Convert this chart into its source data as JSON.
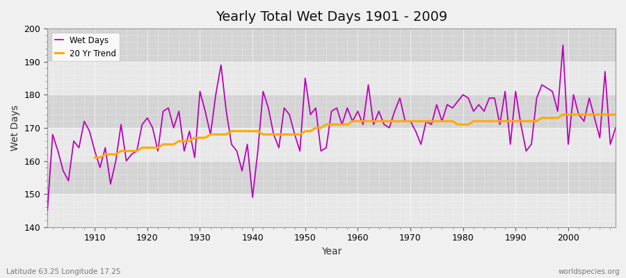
{
  "title": "Yearly Total Wet Days 1901 - 2009",
  "xlabel": "Year",
  "ylabel": "Wet Days",
  "footnote_left": "Latitude 63.25 Longitude 17.25",
  "footnote_right": "worldspecies.org",
  "ylim": [
    140,
    200
  ],
  "yticks": [
    140,
    150,
    160,
    170,
    180,
    190,
    200
  ],
  "wet_days_color": "#bb00bb",
  "trend_color": "#ffaa00",
  "background_color": "#dcdcdc",
  "band_light": "#e8e8e8",
  "band_dark": "#d4d4d4",
  "years": [
    1901,
    1902,
    1903,
    1904,
    1905,
    1906,
    1907,
    1908,
    1909,
    1910,
    1911,
    1912,
    1913,
    1914,
    1915,
    1916,
    1917,
    1918,
    1919,
    1920,
    1921,
    1922,
    1923,
    1924,
    1925,
    1926,
    1927,
    1928,
    1929,
    1930,
    1931,
    1932,
    1933,
    1934,
    1935,
    1936,
    1937,
    1938,
    1939,
    1940,
    1941,
    1942,
    1943,
    1944,
    1945,
    1946,
    1947,
    1948,
    1949,
    1950,
    1951,
    1952,
    1953,
    1954,
    1955,
    1956,
    1957,
    1958,
    1959,
    1960,
    1961,
    1962,
    1963,
    1964,
    1965,
    1966,
    1967,
    1968,
    1969,
    1970,
    1971,
    1972,
    1973,
    1974,
    1975,
    1976,
    1977,
    1978,
    1979,
    1980,
    1981,
    1982,
    1983,
    1984,
    1985,
    1986,
    1987,
    1988,
    1989,
    1990,
    1991,
    1992,
    1993,
    1994,
    1995,
    1996,
    1997,
    1998,
    1999,
    2000,
    2001,
    2002,
    2003,
    2004,
    2005,
    2006,
    2007,
    2008,
    2009
  ],
  "wet_days": [
    145,
    168,
    163,
    157,
    154,
    166,
    164,
    172,
    169,
    163,
    158,
    164,
    153,
    160,
    171,
    160,
    162,
    163,
    171,
    173,
    170,
    163,
    175,
    176,
    170,
    175,
    163,
    169,
    161,
    181,
    175,
    168,
    180,
    189,
    175,
    165,
    163,
    157,
    165,
    149,
    163,
    181,
    176,
    168,
    164,
    176,
    174,
    168,
    163,
    185,
    174,
    176,
    163,
    164,
    175,
    176,
    171,
    176,
    172,
    175,
    171,
    183,
    171,
    175,
    171,
    170,
    175,
    179,
    172,
    172,
    169,
    165,
    172,
    171,
    177,
    172,
    177,
    176,
    178,
    180,
    179,
    175,
    177,
    175,
    179,
    179,
    171,
    181,
    165,
    181,
    171,
    163,
    165,
    179,
    183,
    182,
    181,
    175,
    195,
    165,
    180,
    174,
    172,
    179,
    173,
    167,
    187,
    165,
    170
  ],
  "trend_values": [
    null,
    null,
    null,
    null,
    null,
    null,
    null,
    null,
    null,
    161,
    161,
    162,
    162,
    162,
    163,
    163,
    163,
    163,
    164,
    164,
    164,
    164,
    165,
    165,
    165,
    166,
    166,
    166,
    167,
    167,
    167,
    168,
    168,
    168,
    168,
    169,
    169,
    169,
    169,
    169,
    169,
    168,
    168,
    168,
    168,
    168,
    168,
    168,
    168,
    169,
    169,
    170,
    170,
    171,
    171,
    171,
    171,
    171,
    172,
    172,
    172,
    172,
    172,
    172,
    172,
    172,
    172,
    172,
    172,
    172,
    172,
    172,
    172,
    172,
    172,
    172,
    172,
    172,
    171,
    171,
    171,
    172,
    172,
    172,
    172,
    172,
    172,
    172,
    172,
    172,
    172,
    172,
    172,
    172,
    173,
    173,
    173,
    173,
    174,
    174,
    174,
    174,
    174,
    174,
    174,
    174,
    174,
    174,
    174
  ]
}
